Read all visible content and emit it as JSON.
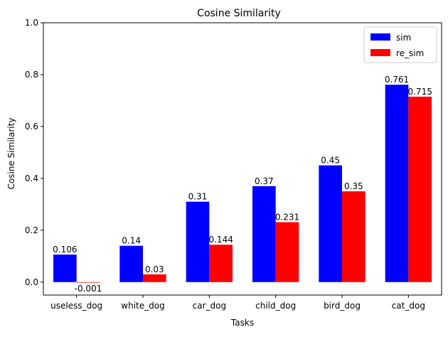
{
  "chart_data": {
    "type": "bar",
    "title": "Cosine Similarity",
    "xlabel": "Tasks",
    "ylabel": "Cosine Similarity",
    "ylim": [
      -0.05,
      1.0
    ],
    "yticks": [
      "0.0",
      "0.2",
      "0.4",
      "0.6",
      "0.8",
      "1.0"
    ],
    "ytick_values": [
      0.0,
      0.2,
      0.4,
      0.6,
      0.8,
      1.0
    ],
    "categories": [
      "useless_dog",
      "white_dog",
      "car_dog",
      "child_dog",
      "bird_dog",
      "cat_dog"
    ],
    "series": [
      {
        "name": "sim",
        "color": "#0000ff",
        "values": [
          0.106,
          0.14,
          0.31,
          0.37,
          0.45,
          0.761
        ],
        "labels": [
          "0.106",
          "0.14",
          "0.31",
          "0.37",
          "0.45",
          "0.761"
        ]
      },
      {
        "name": "re_sim",
        "color": "#ff0000",
        "values": [
          -0.001,
          0.03,
          0.144,
          0.231,
          0.35,
          0.715
        ],
        "labels": [
          "-0.001",
          "0.03",
          "0.144",
          "0.231",
          "0.35",
          "0.715"
        ]
      }
    ],
    "legend_position": "top-right",
    "grid": false
  }
}
